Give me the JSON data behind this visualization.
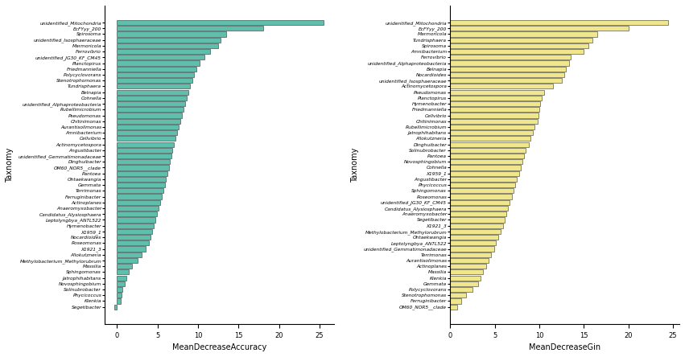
{
  "accuracy_labels": [
    "unidentified_Mitochondria",
    "EcFYyy_200",
    "Spirosoma",
    "unidentified_Isosphaeraceae",
    "Marmoricola",
    "Ferrovibrio",
    "unidentified_JG30_KF_CM45",
    "Planctopirus",
    "Friedmanniella",
    "Polycyclovorans",
    "Stenotrophomonas",
    "Tundrisphaera",
    "Belnapia",
    "Cohnella",
    "unidentified_Alphaproteobacteria",
    "Rubellimicrobium",
    "Pseudomonas",
    "Chitinimonas",
    "Aurantisolimonas",
    "Amnibacterium",
    "Cellvibrio",
    "Actinomycetospora",
    "Angustibacter",
    "unidentified_Gemmatimonadaceae",
    "Dinghuibacter",
    "OM60_NOR5__clade",
    "Pantoea",
    "Ohtaekwangia",
    "Gemmata",
    "Terrimonas",
    "Ferruginibacter",
    "Actinoplanes",
    "Anaeromyxobacter",
    "Candidatus_Alysiosphaera",
    "Leptolyngbya_ANTL522",
    "Hymenobacter",
    "X1959_1",
    "Nocardioides",
    "Roseomonas",
    "X1921_3",
    "Allokutzneria",
    "Methylobacterium_Methylorubrum",
    "Massilia",
    "Sphingomonas",
    "Jatrophihabitans",
    "Novosphingobium",
    "Solinubrobacter",
    "Phycicoccus",
    "Klenkia",
    "Segetibacter"
  ],
  "accuracy_values": [
    25.5,
    18.0,
    13.5,
    12.8,
    12.5,
    11.5,
    10.8,
    10.2,
    9.8,
    9.5,
    9.3,
    9.0,
    8.8,
    8.6,
    8.4,
    8.2,
    8.0,
    7.8,
    7.6,
    7.4,
    7.2,
    7.0,
    6.8,
    6.7,
    6.5,
    6.4,
    6.2,
    6.0,
    5.9,
    5.7,
    5.5,
    5.3,
    5.1,
    4.9,
    4.7,
    4.5,
    4.3,
    4.1,
    3.9,
    3.5,
    3.0,
    2.5,
    1.8,
    1.5,
    1.2,
    1.0,
    0.7,
    0.6,
    0.5,
    -0.3
  ],
  "gin_labels": [
    "unidentified_Mitochondria",
    "EcFYyy_200",
    "Marmoricola",
    "Tundrisphaera",
    "Spirosoma",
    "Amnibacterium",
    "Ferrovibrio",
    "unidentified_Alphaproteobacteria",
    "Belnapia",
    "Nocardioides",
    "unidentified_Isosphaeraceae",
    "Actinomycetospora",
    "Pseudomonas",
    "Planctopirus",
    "Hymenobacter",
    "Friedmanniella",
    "Cellvibrio",
    "Chitinimonas",
    "Rubellimicrobium",
    "Jatrophihabitans",
    "Allokutzneria",
    "Dinghuibacter",
    "Solinubrobacter",
    "Pantoea",
    "Novosphingobium",
    "Cohnella",
    "X1959_1",
    "Angustibacter",
    "Phycicoccus",
    "Sphingomonas",
    "Roseomonas",
    "unidentified_JG30_KF_CM45",
    "Candidatus_Alysiosphaera",
    "Anaeromyxobacter",
    "Segetibacter",
    "X1921_3",
    "Methylobacterium_Methylorubrum",
    "Ohtaekwangia",
    "Leptolyngbya_ANTL522",
    "unidentified_Gemmatimonadaceae",
    "Terrimonas",
    "Aurantisolimonas",
    "Actinoplanes",
    "Massilia",
    "Klenkia",
    "Gemmata",
    "Polycyclovorans",
    "Stenotrophomonas",
    "Ferruginibacter",
    "OM60_NOR5__clade"
  ],
  "gin_values": [
    24.5,
    20.0,
    16.5,
    16.0,
    15.5,
    15.0,
    13.5,
    13.3,
    13.0,
    12.8,
    12.5,
    11.5,
    10.5,
    10.3,
    10.1,
    10.0,
    9.9,
    9.8,
    9.5,
    9.3,
    9.0,
    8.8,
    8.5,
    8.3,
    8.1,
    7.9,
    7.7,
    7.5,
    7.3,
    7.1,
    6.9,
    6.7,
    6.5,
    6.3,
    6.1,
    5.9,
    5.7,
    5.4,
    5.1,
    4.9,
    4.6,
    4.3,
    4.0,
    3.7,
    3.4,
    3.1,
    2.5,
    1.8,
    1.2,
    0.8
  ],
  "accuracy_color": "#5fbfad",
  "gin_color": "#f0e68c",
  "bar_edgecolor": "#333333",
  "xlabel_accuracy": "MeanDecreaseAccuracy",
  "xlabel_gin": "MeanDecreaseGin",
  "ylabel": "Taxnomy",
  "background_color": "#ffffff",
  "bar_linewidth": 0.4
}
